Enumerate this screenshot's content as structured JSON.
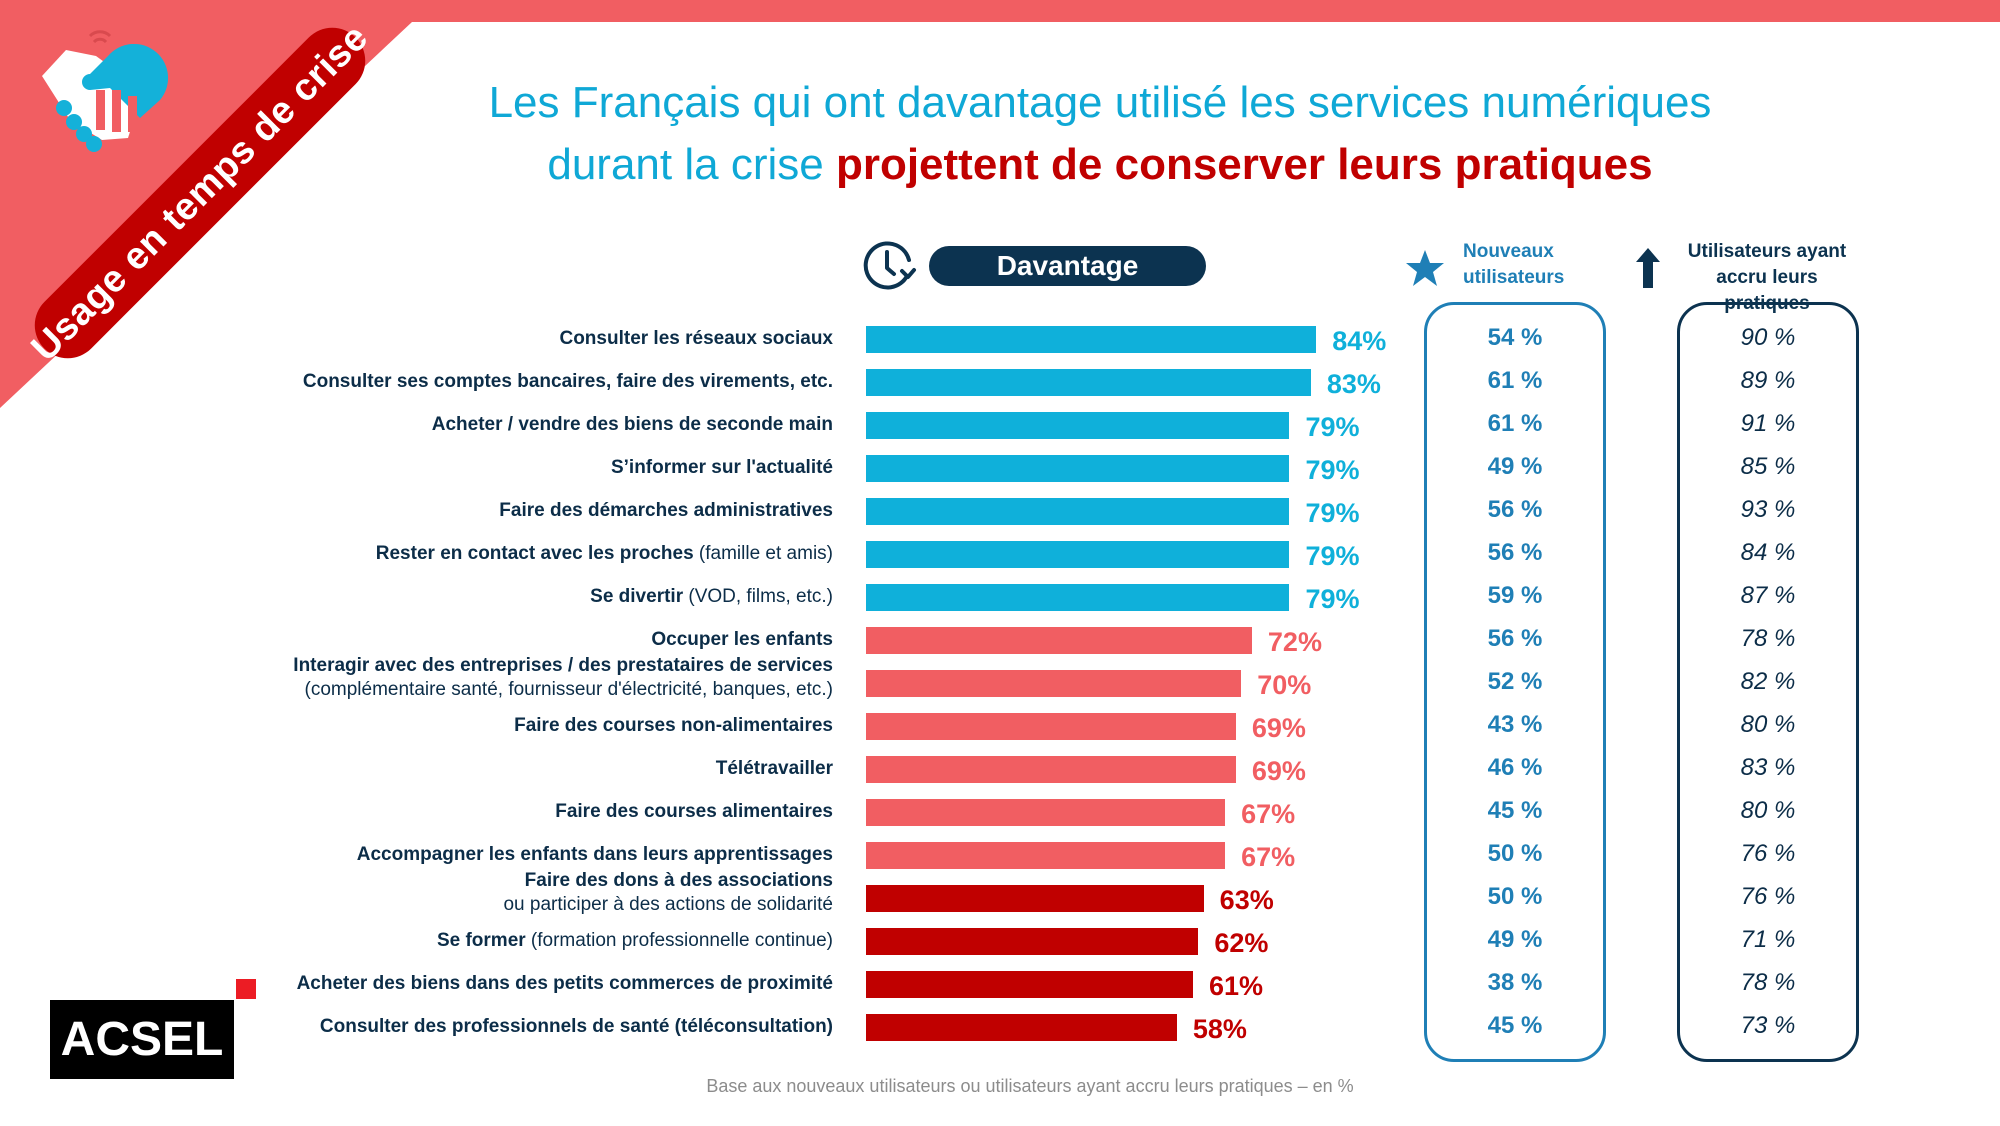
{
  "banner": {
    "ribbon_text": "Usage en temps de crise",
    "icon": "handshake-icon"
  },
  "title": {
    "line1": "Les Français qui ont davantage utilisé les services numériques",
    "line2_plain": "durant la crise ",
    "line2_emphasis": "projettent de conserver leurs pratiques"
  },
  "column_headers": {
    "davantage": {
      "label": "Davantage",
      "icon": "clock-refresh-icon"
    },
    "new_users": {
      "line1": "Nouveaux",
      "line2": "utilisateurs",
      "icon": "star-icon"
    },
    "increased_users": {
      "line1": "Utilisateurs ayant",
      "line2": "accru leurs pratiques",
      "icon": "arrow-up-icon"
    }
  },
  "colors": {
    "blue": "#0fb0da",
    "salmon": "#f15e62",
    "red": "#c00000",
    "new_users": "#1f7fb6",
    "navy": "#0c3350"
  },
  "chart_data": {
    "type": "bar",
    "orientation": "horizontal",
    "title": "Les Français qui ont davantage utilisé les services numériques durant la crise projettent de conserver leurs pratiques",
    "xlabel": "",
    "ylabel": "",
    "xlim": [
      0,
      100
    ],
    "categories": [
      {
        "bold": "Consulter les réseaux sociaux",
        "light": ""
      },
      {
        "bold": "Consulter ses comptes bancaires, faire des virements, etc.",
        "light": ""
      },
      {
        "bold": "Acheter / vendre des biens de seconde main",
        "light": ""
      },
      {
        "bold": "S’informer sur l'actualité",
        "light": ""
      },
      {
        "bold": "Faire des démarches administratives",
        "light": ""
      },
      {
        "bold": "Rester en contact avec les proches",
        "light": " (famille et amis)"
      },
      {
        "bold": "Se divertir",
        "light": " (VOD, films, etc.)"
      },
      {
        "bold": "Occuper les enfants",
        "light": ""
      },
      {
        "bold": "Interagir avec des entreprises / des prestataires de services",
        "light2": "(complémentaire santé, fournisseur d'électricité, banques, etc.)"
      },
      {
        "bold": "Faire des courses non-alimentaires",
        "light": ""
      },
      {
        "bold": "Télétravailler",
        "light": ""
      },
      {
        "bold": "Faire des courses alimentaires",
        "light": ""
      },
      {
        "bold": "Accompagner les enfants dans leurs apprentissages",
        "light": ""
      },
      {
        "bold": "Faire des dons à des associations",
        "light2": "ou participer à des actions de solidarité"
      },
      {
        "bold": "Se former",
        "light": " (formation professionnelle continue)"
      },
      {
        "bold": "Acheter des biens dans des petits commerces de proximité",
        "light": ""
      },
      {
        "bold": "Consulter des professionnels de santé (téléconsultation)",
        "light": ""
      }
    ],
    "series": [
      {
        "name": "Davantage",
        "values": [
          84,
          83,
          79,
          79,
          79,
          79,
          79,
          72,
          70,
          69,
          69,
          67,
          67,
          63,
          62,
          61,
          58
        ],
        "groups": [
          "blue",
          "blue",
          "blue",
          "blue",
          "blue",
          "blue",
          "blue",
          "salmon",
          "salmon",
          "salmon",
          "salmon",
          "salmon",
          "salmon",
          "red",
          "red",
          "red",
          "red"
        ]
      },
      {
        "name": "Nouveaux utilisateurs",
        "values": [
          54,
          61,
          61,
          49,
          56,
          56,
          59,
          56,
          52,
          43,
          46,
          45,
          50,
          50,
          49,
          38,
          45
        ]
      },
      {
        "name": "Utilisateurs ayant accru leurs pratiques",
        "values": [
          90,
          89,
          91,
          85,
          93,
          84,
          87,
          78,
          82,
          80,
          83,
          80,
          76,
          76,
          71,
          78,
          73
        ]
      }
    ],
    "value_suffix_bar": "%",
    "value_suffix_table": " %"
  },
  "logo": {
    "text": "ACSEL"
  },
  "footer": {
    "note": "Base aux nouveaux utilisateurs ou utilisateurs ayant accru leurs pratiques – en %"
  }
}
